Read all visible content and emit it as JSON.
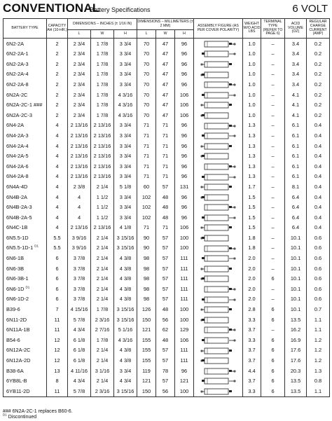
{
  "header": {
    "title": "CONVENTIONAL",
    "subtitle": "Battery Specifications",
    "voltage": "6 VOLT"
  },
  "columns": {
    "battery_type": "BATTERY TYPE",
    "capacity": "CAPACITY AH (10-HR.)",
    "dim_inches": "DIMENSIONS – INCHES (± 1/16 IN)",
    "dim_mm": "DIMENSIONS – MILLIMETERS (± 2 MM)",
    "l": "L",
    "w": "W",
    "h": "H",
    "assembly": "ASSEMBLY FIGURE (AS PER COVER POLARITY)",
    "weight": "WEIGHT W/O ACID LBS",
    "terminal": "TERMINAL TYPE (REFER TO PAGE 6)",
    "acid": "ACID VOLUME (OZ)",
    "charge": "REGULAR CHARGE CURRENT (AMP)"
  },
  "rows": [
    {
      "type": "6N2-2A",
      "sup": "",
      "cap": "2",
      "li": "2 3/4",
      "wi": "1 7/8",
      "hi": "3 3/4",
      "lm": "70",
      "wm": "47",
      "hm": "96",
      "wt": "1.0",
      "term": "–",
      "acid": "3.4",
      "amp": "0.2"
    },
    {
      "type": "6N2-2A-1",
      "sup": "",
      "cap": "2",
      "li": "2 3/4",
      "wi": "1 7/8",
      "hi": "3 3/4",
      "lm": "70",
      "wm": "47",
      "hm": "96",
      "wt": "1.0",
      "term": "–",
      "acid": "3.4",
      "amp": "0.2"
    },
    {
      "type": "6N2-2A-3",
      "sup": "",
      "cap": "2",
      "li": "2 3/4",
      "wi": "1 7/8",
      "hi": "3 3/4",
      "lm": "70",
      "wm": "47",
      "hm": "96",
      "wt": "1.0",
      "term": "–",
      "acid": "3.4",
      "amp": "0.2"
    },
    {
      "type": "6N2-2A-4",
      "sup": "",
      "cap": "2",
      "li": "2 3/4",
      "wi": "1 7/8",
      "hi": "3 3/4",
      "lm": "70",
      "wm": "47",
      "hm": "96",
      "wt": "1.0",
      "term": "–",
      "acid": "3.4",
      "amp": "0.2"
    },
    {
      "type": "6N2-2A-8",
      "sup": "",
      "cap": "2",
      "li": "2 3/4",
      "wi": "1 7/8",
      "hi": "3 3/4",
      "lm": "70",
      "wm": "47",
      "hm": "96",
      "wt": "1.0",
      "term": "–",
      "acid": "3.4",
      "amp": "0.2"
    },
    {
      "type": "6N2A-2C",
      "sup": "",
      "cap": "2",
      "li": "2 3/4",
      "wi": "1 7/8",
      "hi": "4 3/16",
      "lm": "70",
      "wm": "47",
      "hm": "106",
      "wt": "1.0",
      "term": "–",
      "acid": "4.1",
      "amp": "0.2"
    },
    {
      "type": "6N2A-2C-1 ###",
      "sup": "",
      "cap": "2",
      "li": "2 3/4",
      "wi": "1 7/8",
      "hi": "4 3/16",
      "lm": "70",
      "wm": "47",
      "hm": "106",
      "wt": "1.0",
      "term": "–",
      "acid": "4.1",
      "amp": "0.2"
    },
    {
      "type": "6N2A-2C-3",
      "sup": "",
      "cap": "2",
      "li": "2 3/4",
      "wi": "1 7/8",
      "hi": "4 3/16",
      "lm": "70",
      "wm": "47",
      "hm": "106",
      "wt": "1.0",
      "term": "–",
      "acid": "4.1",
      "amp": "0.2"
    },
    {
      "type": "6N4-2A",
      "sup": "",
      "cap": "4",
      "li": "2 13/16",
      "wi": "2 13/16",
      "hi": "3 3/4",
      "lm": "71",
      "wm": "71",
      "hm": "96",
      "wt": "1.3",
      "term": "–",
      "acid": "6.1",
      "amp": "0.4"
    },
    {
      "type": "6N4-2A-3",
      "sup": "",
      "cap": "4",
      "li": "2 13/16",
      "wi": "2 13/16",
      "hi": "3 3/4",
      "lm": "71",
      "wm": "71",
      "hm": "96",
      "wt": "1.3",
      "term": "–",
      "acid": "6.1",
      "amp": "0.4"
    },
    {
      "type": "6N4-2A-4",
      "sup": "",
      "cap": "4",
      "li": "2 13/16",
      "wi": "2 13/16",
      "hi": "3 3/4",
      "lm": "71",
      "wm": "71",
      "hm": "96",
      "wt": "1.3",
      "term": "–",
      "acid": "6.1",
      "amp": "0.4"
    },
    {
      "type": "6N4-2A-5",
      "sup": "",
      "cap": "4",
      "li": "2 13/16",
      "wi": "2 13/16",
      "hi": "3 3/4",
      "lm": "71",
      "wm": "71",
      "hm": "96",
      "wt": "1.3",
      "term": "–",
      "acid": "6.1",
      "amp": "0.4"
    },
    {
      "type": "6N4-2A-6",
      "sup": "",
      "cap": "4",
      "li": "2 13/16",
      "wi": "2 13/16",
      "hi": "3 3/4",
      "lm": "71",
      "wm": "71",
      "hm": "96",
      "wt": "1.3",
      "term": "–",
      "acid": "6.1",
      "amp": "0.4"
    },
    {
      "type": "6N4-2A-8",
      "sup": "",
      "cap": "4",
      "li": "2 13/16",
      "wi": "2 13/16",
      "hi": "3 3/4",
      "lm": "71",
      "wm": "71",
      "hm": "96",
      "wt": "1.3",
      "term": "–",
      "acid": "6.1",
      "amp": "0.4"
    },
    {
      "type": "6N4A-4D",
      "sup": "",
      "cap": "4",
      "li": "2 3/8",
      "wi": "2 1/4",
      "hi": "5 1/8",
      "lm": "60",
      "wm": "57",
      "hm": "131",
      "wt": "1.7",
      "term": "–",
      "acid": "8.1",
      "amp": "0.4"
    },
    {
      "type": "6N4B-2A",
      "sup": "",
      "cap": "4",
      "li": "4",
      "wi": "1 1/2",
      "hi": "3 3/4",
      "lm": "102",
      "wm": "48",
      "hm": "96",
      "wt": "1.5",
      "term": "–",
      "acid": "6.4",
      "amp": "0.4"
    },
    {
      "type": "6N4B-2A-3",
      "sup": "",
      "cap": "4",
      "li": "4",
      "wi": "1 1/2",
      "hi": "3 3/4",
      "lm": "102",
      "wm": "48",
      "hm": "96",
      "wt": "1.5",
      "term": "–",
      "acid": "6.4",
      "amp": "0.4"
    },
    {
      "type": "6N4B-2A-5",
      "sup": "",
      "cap": "4",
      "li": "4",
      "wi": "1 1/2",
      "hi": "3 3/4",
      "lm": "102",
      "wm": "48",
      "hm": "96",
      "wt": "1.5",
      "term": "–",
      "acid": "6.4",
      "amp": "0.4"
    },
    {
      "type": "6N4C-1B",
      "sup": "",
      "cap": "4",
      "li": "2 13/16",
      "wi": "2 13/16",
      "hi": "4 1/8",
      "lm": "71",
      "wm": "71",
      "hm": "106",
      "wt": "1.5",
      "term": "–",
      "acid": "6.4",
      "amp": "0.4"
    },
    {
      "type": "6N5.5-1D",
      "sup": "",
      "cap": "5.5",
      "li": "3 9/16",
      "wi": "2 1/4",
      "hi": "3 15/16",
      "lm": "90",
      "wm": "57",
      "hm": "100",
      "wt": "1.8",
      "term": "–",
      "acid": "10.1",
      "amp": "0.6"
    },
    {
      "type": "6N5.5-1D-1",
      "sup": "D1",
      "cap": "5.5",
      "li": "3 9/16",
      "wi": "2 1/4",
      "hi": "3 15/16",
      "lm": "90",
      "wm": "57",
      "hm": "100",
      "wt": "1.8",
      "term": "–",
      "acid": "10.1",
      "amp": "0.6"
    },
    {
      "type": "6N6-1B",
      "sup": "",
      "cap": "6",
      "li": "3 7/8",
      "wi": "2 1/4",
      "hi": "4 3/8",
      "lm": "98",
      "wm": "57",
      "hm": "111",
      "wt": "2.0",
      "term": "–",
      "acid": "10.1",
      "amp": "0.6"
    },
    {
      "type": "6N6-3B",
      "sup": "",
      "cap": "6",
      "li": "3 7/8",
      "wi": "2 1/4",
      "hi": "4 3/8",
      "lm": "98",
      "wm": "57",
      "hm": "111",
      "wt": "2.0",
      "term": "–",
      "acid": "10.1",
      "amp": "0.6"
    },
    {
      "type": "6N6-3B-1",
      "sup": "",
      "cap": "6",
      "li": "3 7/8",
      "wi": "2 1/4",
      "hi": "4 3/8",
      "lm": "98",
      "wm": "57",
      "hm": "111",
      "wt": "2.0",
      "term": "6",
      "acid": "10.1",
      "amp": "0.6"
    },
    {
      "type": "6N6-1D",
      "sup": "D1",
      "cap": "6",
      "li": "3 7/8",
      "wi": "2 1/4",
      "hi": "4 3/8",
      "lm": "98",
      "wm": "57",
      "hm": "111",
      "wt": "2.0",
      "term": "–",
      "acid": "10.1",
      "amp": "0.6"
    },
    {
      "type": "6N6-1D-2",
      "sup": "",
      "cap": "6",
      "li": "3 7/8",
      "wi": "2 1/4",
      "hi": "4 3/8",
      "lm": "98",
      "wm": "57",
      "hm": "111",
      "wt": "2.0",
      "term": "–",
      "acid": "10.1",
      "amp": "0.6"
    },
    {
      "type": "B39-6",
      "sup": "",
      "cap": "7",
      "li": "4 15/16",
      "wi": "1 7/8",
      "hi": "3 15/16",
      "lm": "126",
      "wm": "48",
      "hm": "100",
      "wt": "2.8",
      "term": "6",
      "acid": "10.1",
      "amp": "0.7"
    },
    {
      "type": "6N11-2D",
      "sup": "",
      "cap": "11",
      "li": "5 7/8",
      "wi": "2 3/16",
      "hi": "3 15/16",
      "lm": "150",
      "wm": "56",
      "hm": "100",
      "wt": "3.3",
      "term": "6",
      "acid": "13.5",
      "amp": "1.1"
    },
    {
      "type": "6N11A-1B",
      "sup": "",
      "cap": "11",
      "li": "4 3/4",
      "wi": "2 7/16",
      "hi": "5 1/16",
      "lm": "121",
      "wm": "62",
      "hm": "129",
      "wt": "3.7",
      "term": "–",
      "acid": "16.2",
      "amp": "1.1"
    },
    {
      "type": "B54-6",
      "sup": "",
      "cap": "12",
      "li": "6 1/8",
      "wi": "1 7/8",
      "hi": "4 3/16",
      "lm": "155",
      "wm": "48",
      "hm": "106",
      "wt": "3.3",
      "term": "6",
      "acid": "16.9",
      "amp": "1.2"
    },
    {
      "type": "6N12A-2C",
      "sup": "",
      "cap": "12",
      "li": "6 1/8",
      "wi": "2 1/4",
      "hi": "4 3/8",
      "lm": "155",
      "wm": "57",
      "hm": "111",
      "wt": "3.7",
      "term": "6",
      "acid": "17.6",
      "amp": "1.2"
    },
    {
      "type": "6N12A-2D",
      "sup": "",
      "cap": "12",
      "li": "6 1/8",
      "wi": "2 1/4",
      "hi": "4 3/8",
      "lm": "155",
      "wm": "57",
      "hm": "111",
      "wt": "3.7",
      "term": "6",
      "acid": "17.6",
      "amp": "1.2"
    },
    {
      "type": "B38-6A",
      "sup": "",
      "cap": "13",
      "li": "4 11/16",
      "wi": "3 1/16",
      "hi": "3 3/4",
      "lm": "119",
      "wm": "78",
      "hm": "96",
      "wt": "4.4",
      "term": "6",
      "acid": "20.3",
      "amp": "1.3"
    },
    {
      "type": "6YB8L-B",
      "sup": "",
      "cap": "8",
      "li": "4 3/4",
      "wi": "2 1/4",
      "hi": "4 3/4",
      "lm": "121",
      "wm": "57",
      "hm": "121",
      "wt": "3.7",
      "term": "6",
      "acid": "13.5",
      "amp": "0.8"
    },
    {
      "type": "6YB11-2D",
      "sup": "",
      "cap": "11",
      "li": "5 7/8",
      "wi": "2 3/16",
      "hi": "3 15/16",
      "lm": "150",
      "wm": "56",
      "hm": "100",
      "wt": "3.3",
      "term": "6",
      "acid": "13.5",
      "amp": "1.1"
    }
  ],
  "notes": [
    {
      "mark": "###",
      "text": "6N2A-2C-1 replaces B60-6."
    },
    {
      "mark": "D1",
      "text": "Discontinued"
    }
  ]
}
